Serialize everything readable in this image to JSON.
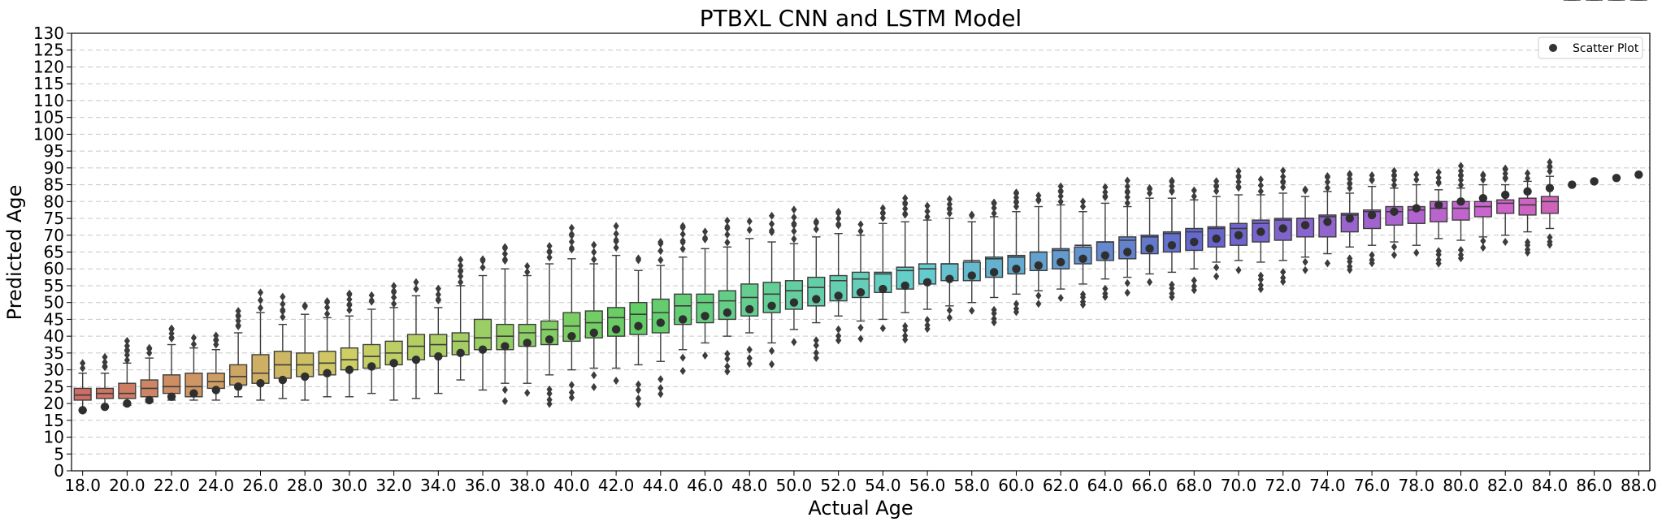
{
  "chart_data": {
    "type": "box",
    "title": "PTBXL CNN and LSTM Model",
    "xlabel": "Actual Age",
    "ylabel": "Predicted Age",
    "ylim": [
      0,
      130
    ],
    "yticks": [
      0,
      5,
      10,
      15,
      20,
      25,
      30,
      35,
      40,
      45,
      50,
      55,
      60,
      65,
      70,
      75,
      80,
      85,
      90,
      95,
      100,
      105,
      110,
      115,
      120,
      125,
      130
    ],
    "x_tick_labels": [
      "18.0",
      "20.0",
      "22.0",
      "24.0",
      "26.0",
      "28.0",
      "30.0",
      "32.0",
      "34.0",
      "36.0",
      "38.0",
      "40.0",
      "42.0",
      "44.0",
      "46.0",
      "48.0",
      "50.0",
      "52.0",
      "54.0",
      "56.0",
      "58.0",
      "60.0",
      "62.0",
      "64.0",
      "66.0",
      "68.0",
      "70.0",
      "72.0",
      "74.0",
      "76.0",
      "78.0",
      "80.0",
      "82.0",
      "84.0",
      "86.0",
      "88.0"
    ],
    "grid": "y-dashed",
    "legend": {
      "position": "upper-right",
      "entries": [
        "Scatter Plot"
      ]
    },
    "categories": [
      18,
      19,
      20,
      21,
      22,
      23,
      24,
      25,
      26,
      27,
      28,
      29,
      30,
      31,
      32,
      33,
      34,
      35,
      36,
      37,
      38,
      39,
      40,
      41,
      42,
      43,
      44,
      45,
      46,
      47,
      48,
      49,
      50,
      51,
      52,
      53,
      54,
      55,
      56,
      57,
      58,
      59,
      60,
      61,
      62,
      63,
      64,
      65,
      66,
      67,
      68,
      69,
      70,
      71,
      72,
      73,
      74,
      75,
      76,
      77,
      78,
      79,
      80,
      81,
      82,
      83,
      84,
      85,
      86,
      87,
      88
    ],
    "boxes": {
      "q1": [
        21.0,
        21.5,
        21.5,
        22.0,
        23.0,
        22.0,
        24.5,
        25.5,
        26.0,
        27.5,
        28.0,
        28.5,
        30.0,
        30.5,
        31.5,
        33.0,
        34.0,
        34.5,
        36.0,
        36.0,
        37.0,
        37.5,
        38.5,
        39.5,
        40.0,
        40.5,
        41.0,
        43.5,
        44.0,
        45.0,
        46.0,
        47.0,
        48.0,
        49.0,
        50.5,
        51.5,
        53.0,
        54.0,
        55.5,
        56.5,
        56.5,
        57.5,
        58.5,
        59.5,
        60.0,
        61.5,
        62.5,
        63.0,
        64.5,
        65.0,
        65.5,
        66.5,
        67.0,
        68.0,
        68.5,
        69.5,
        69.5,
        71.0,
        72.0,
        73.0,
        73.5,
        74.0,
        74.5,
        75.5,
        76.5,
        76.0,
        76.5
      ],
      "median": [
        22.5,
        23.0,
        23.0,
        24.5,
        25.0,
        25.0,
        26.5,
        28.0,
        29.0,
        31.5,
        31.5,
        32.0,
        33.0,
        34.0,
        35.0,
        37.0,
        37.5,
        38.5,
        39.5,
        40.0,
        41.0,
        42.0,
        43.0,
        44.0,
        45.5,
        46.5,
        47.0,
        49.0,
        50.0,
        50.5,
        51.5,
        52.5,
        53.5,
        54.5,
        56.5,
        57.0,
        58.5,
        59.5,
        60.0,
        61.5,
        62.5,
        63.0,
        63.5,
        65.0,
        65.5,
        67.0,
        68.0,
        68.5,
        69.5,
        70.5,
        71.0,
        72.0,
        72.0,
        73.5,
        74.5,
        75.0,
        75.5,
        76.0,
        77.0,
        77.0,
        77.5,
        78.0,
        78.0,
        78.5,
        79.5,
        79.0,
        80.0
      ],
      "q3": [
        24.5,
        24.5,
        26.0,
        27.0,
        28.5,
        29.0,
        29.0,
        31.5,
        34.5,
        35.5,
        35.0,
        35.5,
        36.5,
        37.5,
        38.5,
        40.5,
        40.5,
        41.0,
        45.0,
        43.5,
        43.5,
        44.5,
        47.0,
        47.5,
        48.5,
        50.0,
        51.0,
        52.5,
        52.5,
        53.5,
        55.5,
        56.0,
        56.5,
        57.5,
        58.0,
        59.0,
        59.0,
        60.5,
        61.5,
        61.5,
        62.0,
        63.5,
        64.0,
        65.0,
        66.0,
        66.5,
        68.0,
        69.5,
        70.0,
        71.0,
        72.0,
        72.5,
        73.5,
        74.5,
        75.0,
        75.0,
        76.0,
        76.5,
        77.5,
        78.5,
        78.5,
        80.0,
        80.0,
        80.0,
        80.5,
        81.0,
        81.5
      ],
      "whisker_low": [
        18.0,
        19.0,
        19.5,
        20.5,
        21.0,
        21.0,
        21.0,
        22.0,
        21.0,
        21.5,
        21.0,
        22.0,
        22.0,
        23.0,
        21.0,
        21.5,
        23.0,
        27.0,
        24.0,
        26.0,
        26.0,
        28.5,
        30.0,
        30.5,
        30.5,
        31.5,
        32.5,
        36.0,
        38.0,
        40.0,
        41.0,
        38.0,
        42.0,
        44.0,
        46.0,
        44.5,
        45.0,
        47.0,
        48.0,
        49.0,
        50.0,
        51.5,
        52.5,
        53.5,
        54.0,
        55.5,
        57.0,
        57.5,
        58.5,
        59.0,
        60.0,
        62.0,
        62.5,
        62.0,
        62.5,
        63.5,
        64.5,
        66.5,
        67.0,
        68.0,
        67.0,
        69.0,
        68.5,
        69.5,
        70.0,
        71.0,
        72.0
      ],
      "whisker_high": [
        29.0,
        29.0,
        32.0,
        33.5,
        37.5,
        36.5,
        36.0,
        41.0,
        47.0,
        43.5,
        46.5,
        45.5,
        46.0,
        48.0,
        48.5,
        52.0,
        48.5,
        55.0,
        58.0,
        60.0,
        58.0,
        61.5,
        63.0,
        61.5,
        64.0,
        59.5,
        61.0,
        63.5,
        66.0,
        66.5,
        69.0,
        68.0,
        67.5,
        69.5,
        70.5,
        70.0,
        73.5,
        74.0,
        74.5,
        75.0,
        74.0,
        75.5,
        77.0,
        78.5,
        79.0,
        77.0,
        79.5,
        78.5,
        81.0,
        81.0,
        80.5,
        81.5,
        82.0,
        82.0,
        82.5,
        81.5,
        83.0,
        82.5,
        84.5,
        84.0,
        85.0,
        83.5,
        84.0,
        85.0,
        85.0,
        86.0,
        87.5
      ]
    },
    "scatter_points": {
      "name": "Scatter Plot",
      "values": [
        18,
        19,
        20,
        21,
        22,
        23,
        24,
        25,
        26,
        27,
        28,
        29,
        30,
        31,
        32,
        33,
        34,
        35,
        36,
        37,
        38,
        39,
        40,
        41,
        42,
        43,
        44,
        45,
        46,
        47,
        48,
        49,
        50,
        51,
        52,
        53,
        54,
        55,
        56,
        57,
        58,
        59,
        60,
        61,
        62,
        63,
        64,
        65,
        66,
        67,
        68,
        69,
        70,
        71,
        72,
        73,
        74,
        75,
        76,
        77,
        78,
        79,
        80,
        81,
        82,
        83,
        84,
        85,
        86,
        87,
        88
      ]
    }
  }
}
